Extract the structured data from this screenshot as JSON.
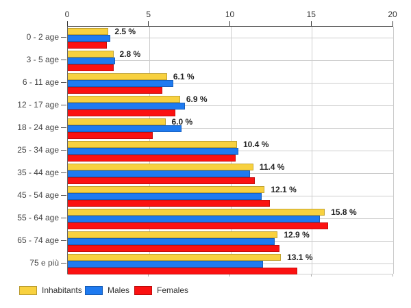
{
  "chart_data": {
    "type": "bar",
    "orientation": "horizontal",
    "title": "",
    "xlabel": "",
    "ylabel": "",
    "xlim": [
      0,
      20
    ],
    "x_ticks": [
      "0",
      "5",
      "10",
      "15",
      "20"
    ],
    "grid": true,
    "legend_position": "bottom",
    "unit": "%",
    "categories": [
      "0 - 2 age",
      "3 - 5 age",
      "6 - 11 age",
      "12 - 17 age",
      "18 - 24 age",
      "25 - 34 age",
      "35 - 44 age",
      "45 - 54 age",
      "55 - 64 age",
      "65 - 74 age",
      "75 e più"
    ],
    "series": [
      {
        "name": "Inhabitants",
        "color": "#F8D13F",
        "values": [
          2.5,
          2.8,
          6.1,
          6.9,
          6.0,
          10.4,
          11.4,
          12.1,
          15.8,
          12.9,
          13.1
        ]
      },
      {
        "name": "Males",
        "color": "#1E7AF0",
        "values": [
          2.6,
          2.9,
          6.5,
          7.2,
          7.0,
          10.5,
          11.2,
          11.9,
          15.5,
          12.7,
          12.0
        ]
      },
      {
        "name": "Females",
        "color": "#FB1111",
        "values": [
          2.4,
          2.8,
          5.8,
          6.6,
          5.2,
          10.3,
          11.5,
          12.4,
          16.0,
          13.0,
          14.1
        ]
      }
    ],
    "data_labels": [
      "2.5 %",
      "2.8 %",
      "6.1 %",
      "6.9 %",
      "6.0 %",
      "10.4 %",
      "11.4 %",
      "12.1 %",
      "15.8 %",
      "12.9 %",
      "13.1 %"
    ]
  },
  "colors": {
    "grid": "#cccccc",
    "axis_line": "#444444",
    "tick": "#333333",
    "value_label": "#222222",
    "category_label": "#444444"
  },
  "legend": {
    "items": [
      {
        "label": "Inhabitants",
        "color": "#F8D13F"
      },
      {
        "label": "Males",
        "color": "#1E7AF0"
      },
      {
        "label": "Females",
        "color": "#FB1111"
      }
    ]
  }
}
